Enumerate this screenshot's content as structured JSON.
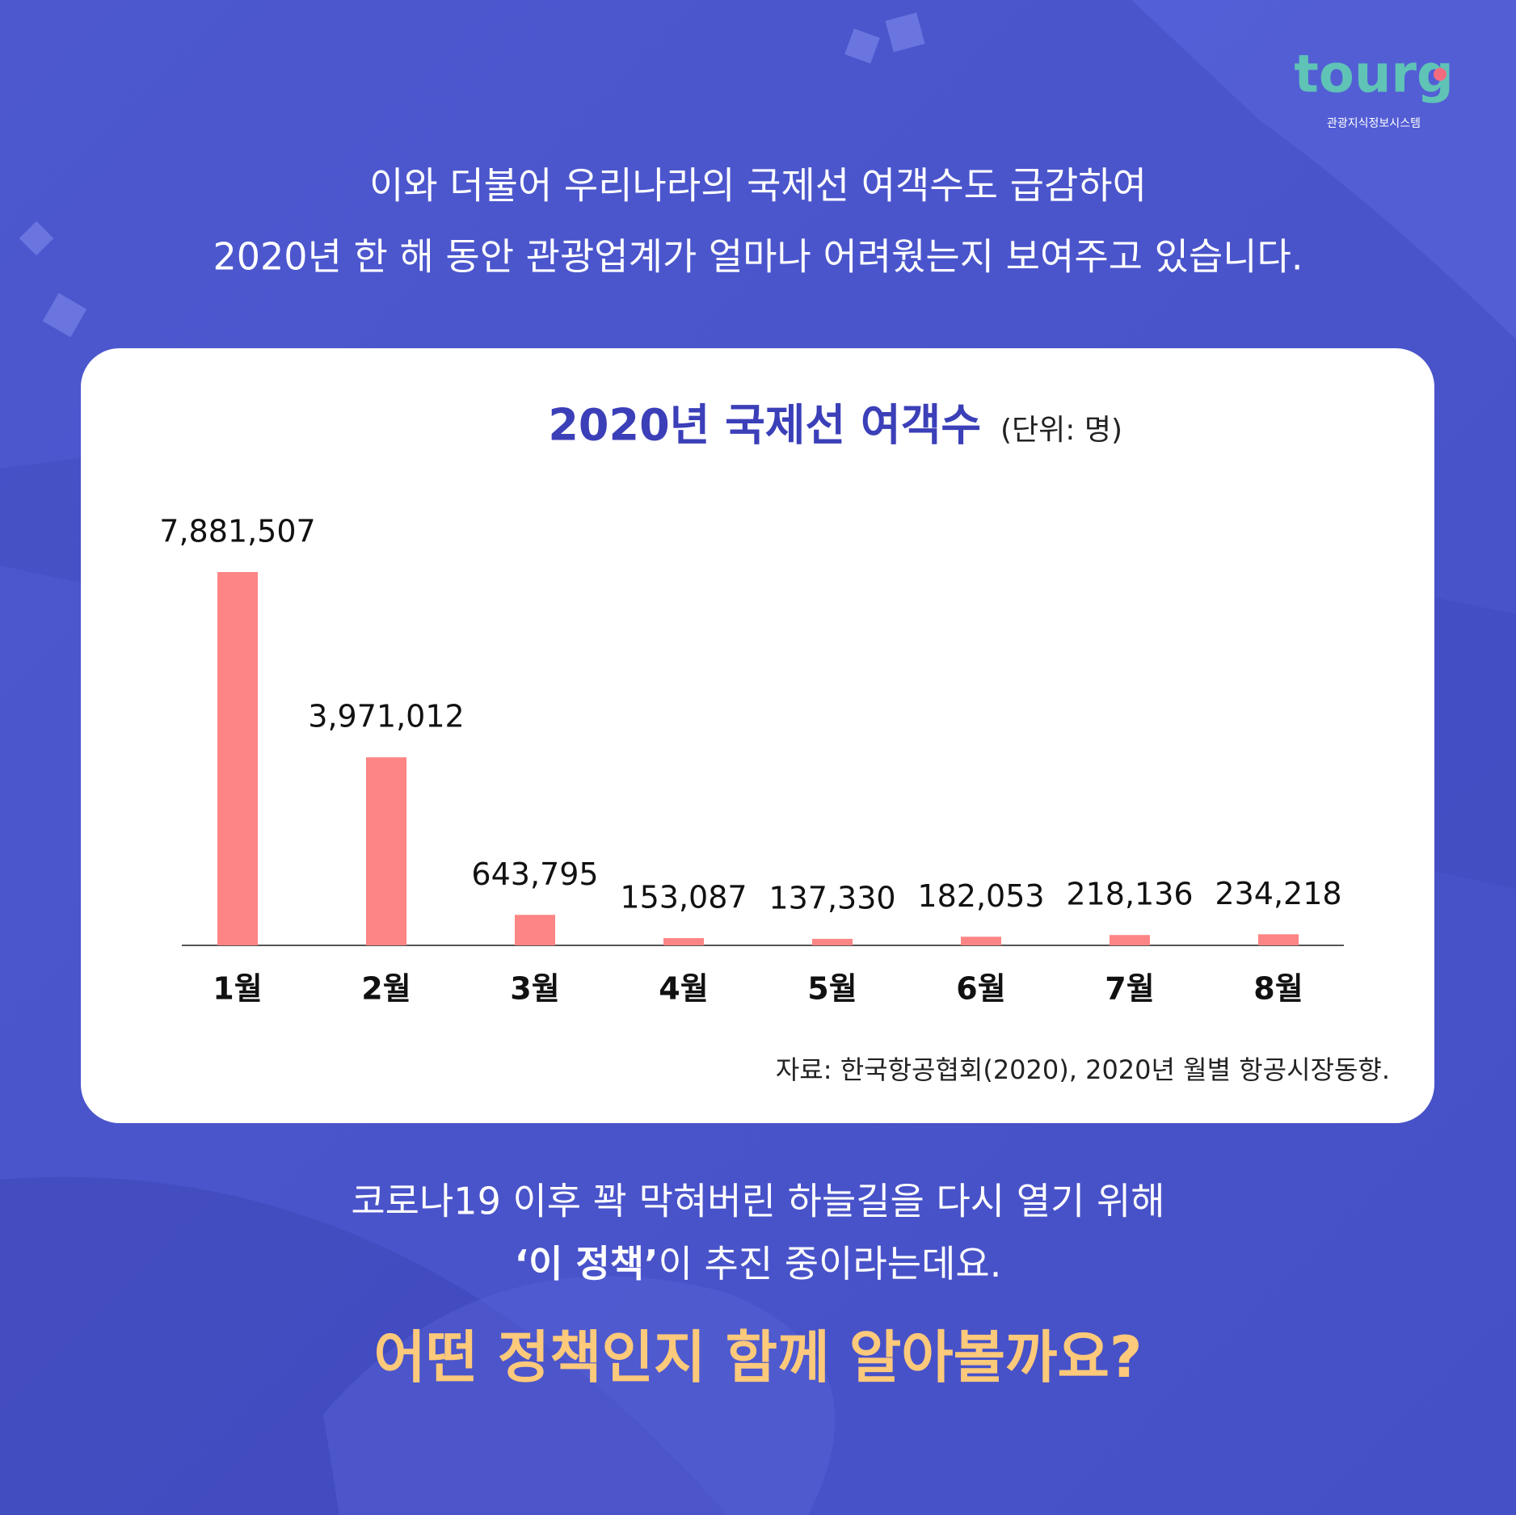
{
  "logo": {
    "brand": "tourg",
    "subtitle": "관광지식정보시스템"
  },
  "intro": [
    "이와 더불어 우리나라의 국제선 여객수도 급감하여",
    "2020년 한 해 동안 관광업계가 얼마나 어려웠는지 보여주고 있습니다."
  ],
  "chart_data": {
    "type": "bar",
    "title": "2020년 국제선 여객수",
    "subtitle": "(단위: 명)",
    "categories": [
      "1월",
      "2월",
      "3월",
      "4월",
      "5월",
      "6월",
      "7월",
      "8월"
    ],
    "values": [
      7881507,
      3971012,
      643795,
      153087,
      137330,
      182053,
      218136,
      234218
    ],
    "value_labels": [
      "7,881,507",
      "3,971,012",
      "643,795",
      "153,087",
      "137,330",
      "182,053",
      "218,136",
      "234,218"
    ],
    "color": "#fe8585",
    "source": "자료: 한국항공협회(2020), 2020년 월별 항공시장동향."
  },
  "outro": {
    "line1": "코로나19 이후 꽉 막혀버린 하늘길을 다시 열기 위해",
    "line2_bold": "‘이 정책’",
    "line2_rest": "이 추진 중이라는데요.",
    "headline": "어떤 정책인지 함께 알아볼까요?"
  }
}
